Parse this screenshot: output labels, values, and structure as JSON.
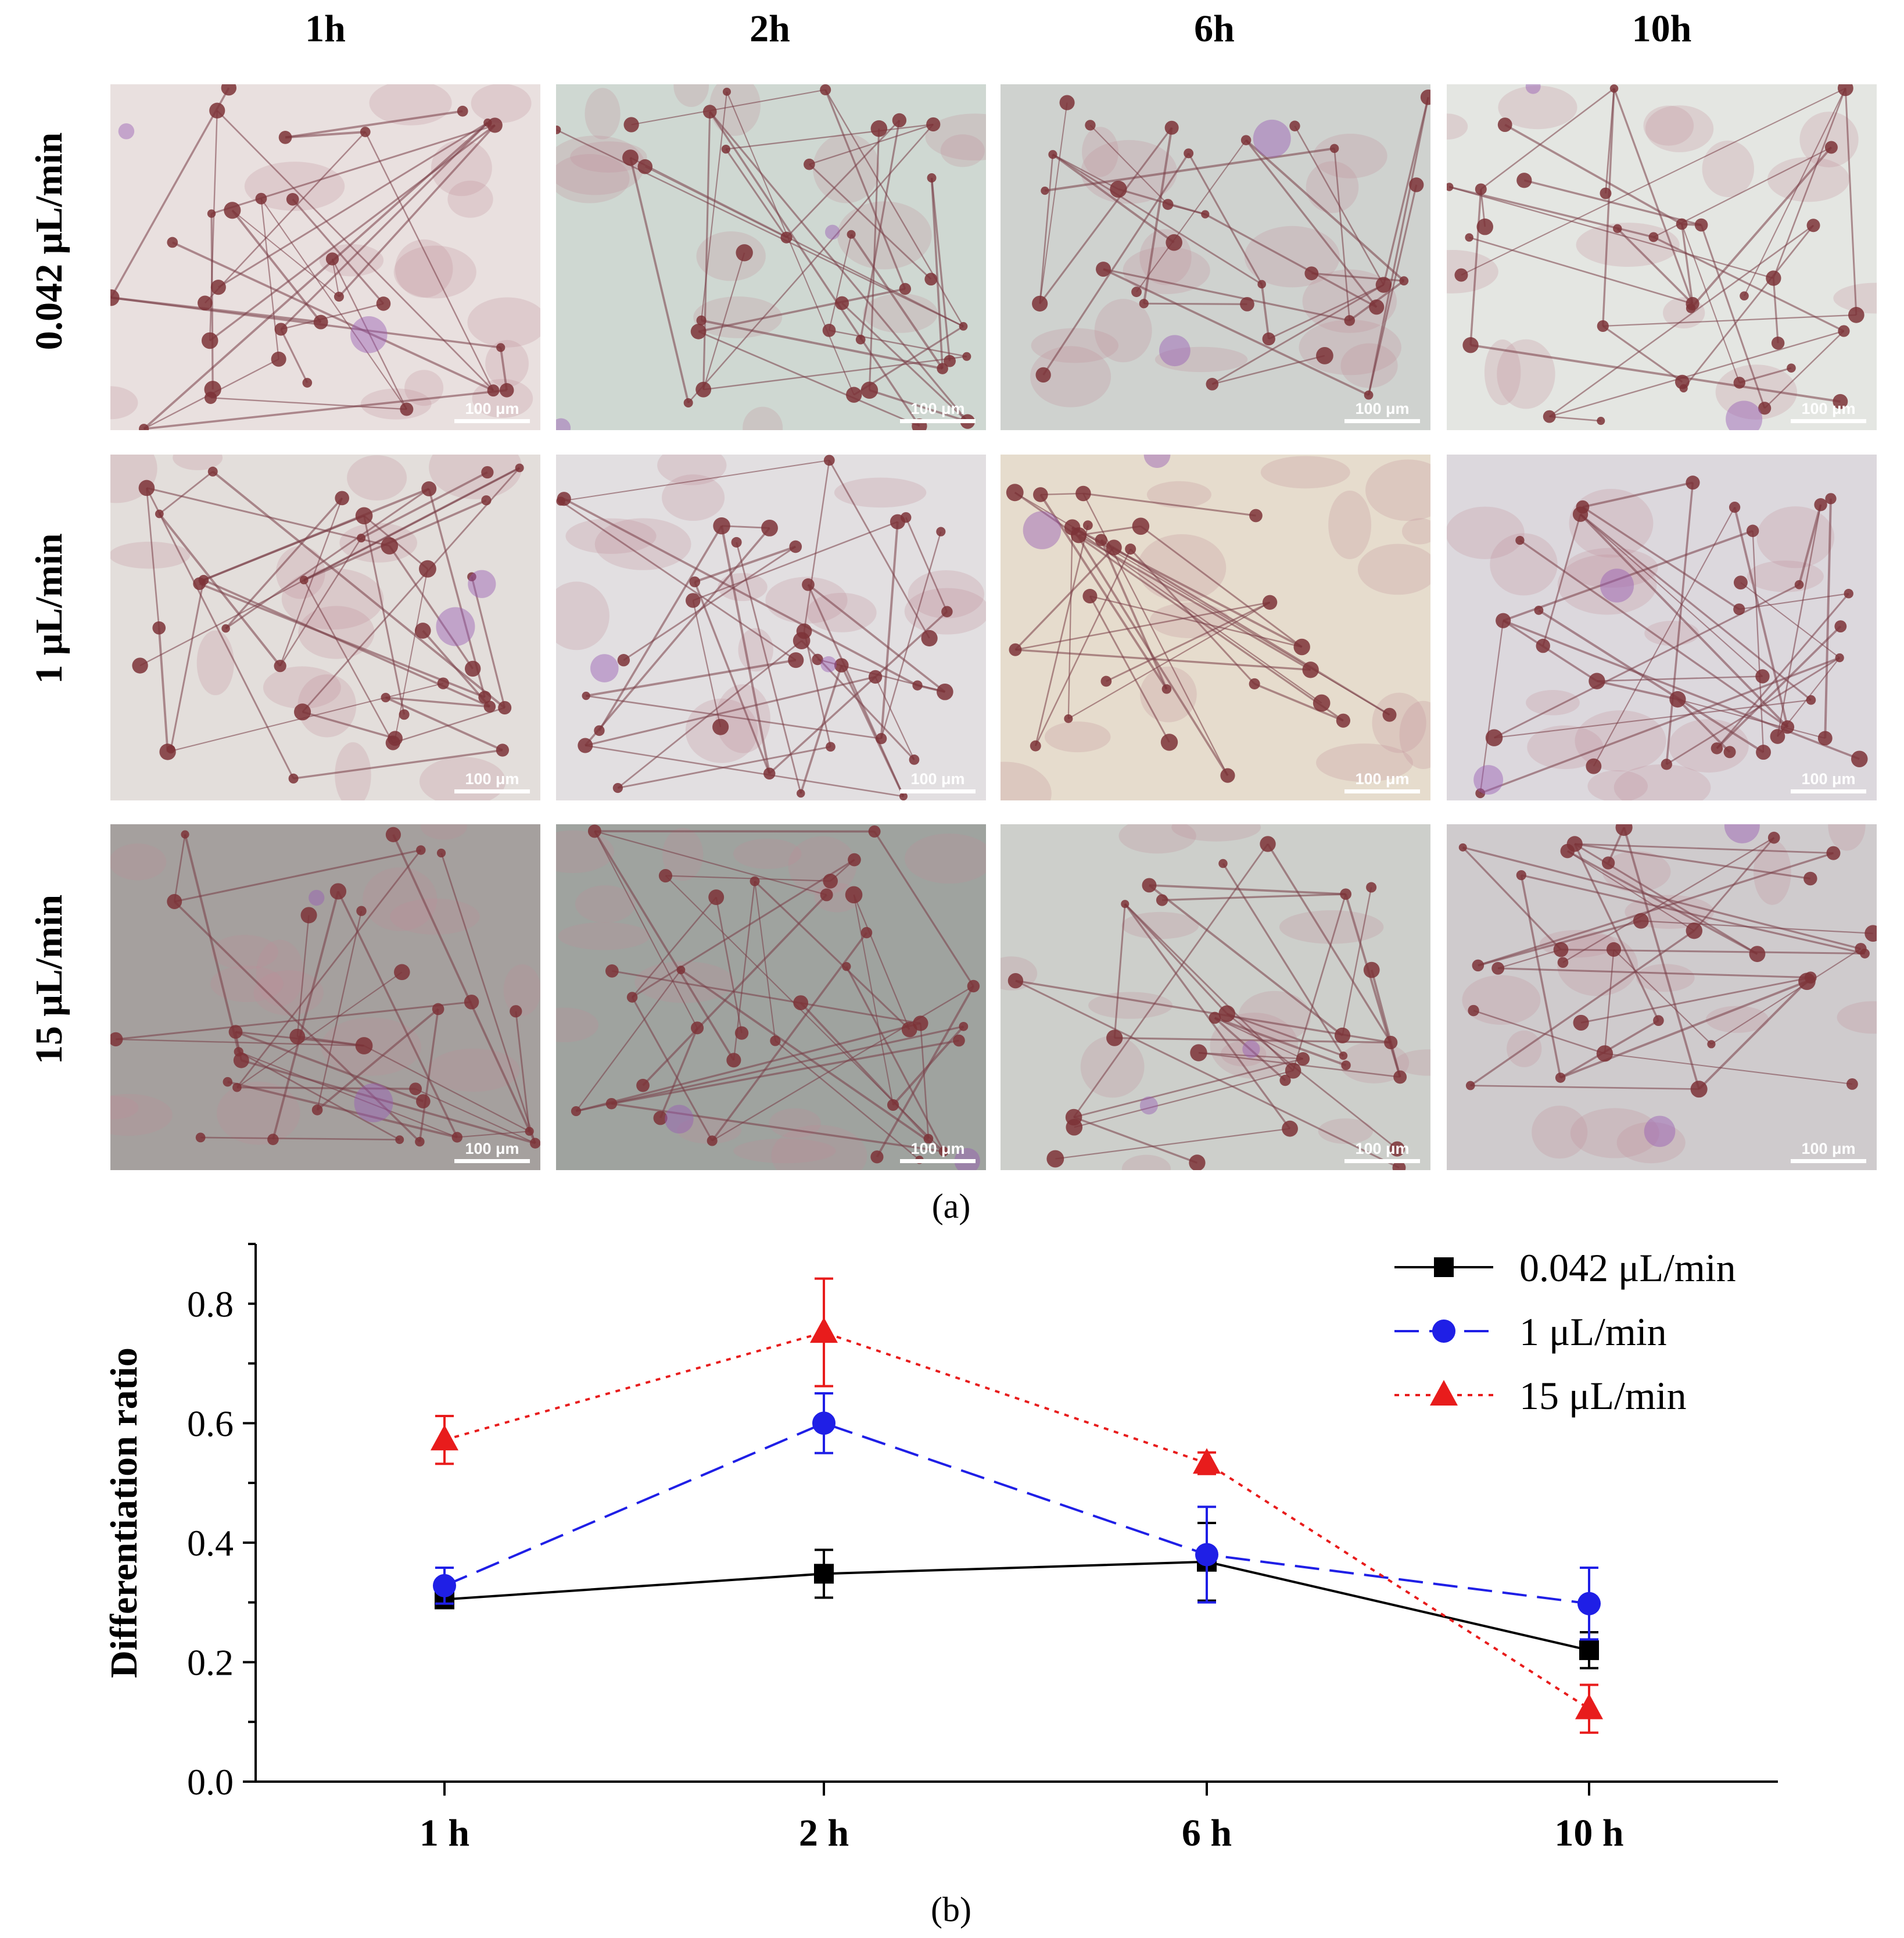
{
  "figure": {
    "column_headers": [
      "1h",
      "2h",
      "6h",
      "10h"
    ],
    "row_headers": [
      "0.042 μL/min",
      "1 μL/min",
      "15 μL/min"
    ],
    "scale_bar_label": "100 μm",
    "caption_a": "(a)",
    "caption_b": "(b)",
    "micrograph_tints": [
      [
        "#e9e0df",
        "#cfd8d2",
        "#cfd2cf",
        "#e4e6e2"
      ],
      [
        "#e3dedb",
        "#e2dfe1",
        "#e6dccd",
        "#dcd8dd"
      ],
      [
        "#a5a09e",
        "#9fa39f",
        "#cdcfcb",
        "#cfcbcd"
      ]
    ]
  },
  "chart_data": {
    "type": "line",
    "categories": [
      "1 h",
      "2 h",
      "6 h",
      "10 h"
    ],
    "ylabel": "Differentiation ratio",
    "xlabel": "",
    "ylim": [
      0.0,
      0.9
    ],
    "yticks": [
      0.0,
      0.2,
      0.4,
      0.6,
      0.8
    ],
    "ytick_labels": [
      "0.0",
      "0.2",
      "0.4",
      "0.6",
      "0.8"
    ],
    "legend_position": "top-right",
    "series": [
      {
        "name": "0.042 μL/min",
        "color": "#000000",
        "marker": "square",
        "line": "solid",
        "values": [
          0.305,
          0.348,
          0.368,
          0.22
        ],
        "errors": [
          0.012,
          0.04,
          0.065,
          0.03
        ]
      },
      {
        "name": "1 μL/min",
        "color": "#1f1fe6",
        "marker": "circle",
        "line": "dashed",
        "values": [
          0.328,
          0.6,
          0.38,
          0.298
        ],
        "errors": [
          0.03,
          0.05,
          0.08,
          0.06
        ]
      },
      {
        "name": "15 μL/min",
        "color": "#e81c1c",
        "marker": "triangle",
        "line": "dotted",
        "values": [
          0.572,
          0.752,
          0.533,
          0.122
        ],
        "errors": [
          0.04,
          0.09,
          0.018,
          0.04
        ]
      }
    ]
  }
}
